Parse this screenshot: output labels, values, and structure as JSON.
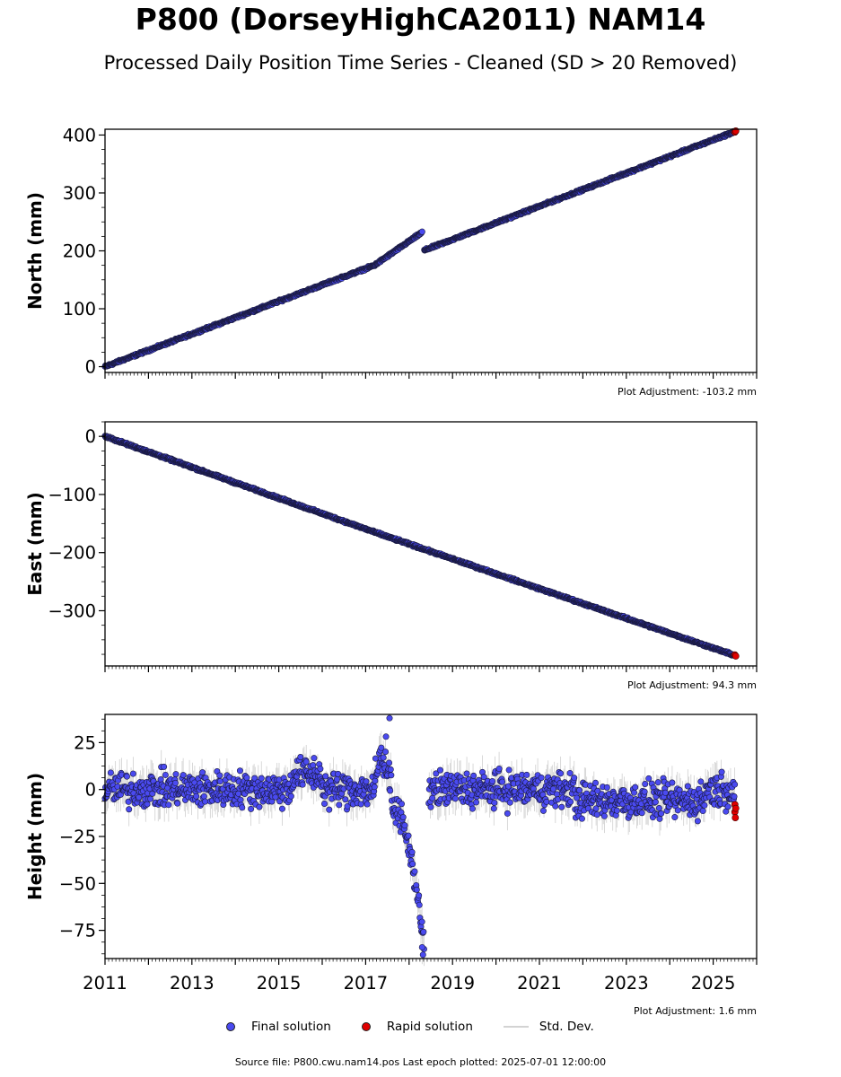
{
  "title": "P800 (DorseyHighCA2011) NAM14",
  "subtitle": "Processed Daily Position Time Series - Cleaned (SD > 20 Removed)",
  "colors": {
    "final": "#4a4af0",
    "final_edge": "#1a1a40",
    "rapid": "#e00000",
    "stddev": "#b0b0b0",
    "axis": "#000000"
  },
  "legend": {
    "final": "Final solution",
    "rapid": "Rapid solution",
    "stddev": "Std. Dev."
  },
  "footer": "Source file: P800.cwu.nam14.pos  Last epoch plotted: 2025-07-01 12:00:00",
  "chart_data": [
    {
      "type": "scatter",
      "ylabel": "North (mm)",
      "adjustment": "Plot Adjustment: -103.2 mm",
      "xlim": [
        2011.0,
        2026.0
      ],
      "ylim": [
        -10,
        410
      ],
      "yticks": [
        0,
        100,
        200,
        300,
        400
      ],
      "ytick_labels": [
        "0",
        "100",
        "200",
        "300",
        "400"
      ],
      "series": [
        {
          "segment": [
            [
              2011.0,
              0
            ],
            [
              2017.2,
              175
            ]
          ]
        },
        {
          "segment": [
            [
              2017.2,
              175
            ],
            [
              2018.3,
              232
            ]
          ]
        },
        {
          "segment": [
            [
              2018.35,
              201
            ],
            [
              2025.5,
              406
            ]
          ]
        }
      ],
      "rapid_points": [
        [
          2025.5,
          405
        ],
        [
          2025.52,
          407
        ]
      ]
    },
    {
      "type": "scatter",
      "ylabel": "East (mm)",
      "adjustment": "Plot Adjustment: 94.3 mm",
      "xlim": [
        2011.0,
        2026.0
      ],
      "ylim": [
        -395,
        25
      ],
      "yticks": [
        0,
        -100,
        -200,
        -300
      ],
      "ytick_labels": [
        "0",
        "−100",
        "−200",
        "−300"
      ],
      "series": [
        {
          "segment": [
            [
              2011.0,
              0
            ],
            [
              2017.4,
              -170
            ]
          ]
        },
        {
          "segment": [
            [
              2017.4,
              -170
            ],
            [
              2025.5,
              -377
            ]
          ]
        }
      ],
      "rapid_points": [
        [
          2025.5,
          -376
        ],
        [
          2025.52,
          -378
        ]
      ]
    },
    {
      "type": "scatter",
      "ylabel": "Height (mm)",
      "adjustment": "Plot Adjustment: 1.6 mm",
      "xlim": [
        2011.0,
        2026.0
      ],
      "ylim": [
        -90,
        40
      ],
      "yticks": [
        25,
        0,
        -25,
        -50,
        -75
      ],
      "ytick_labels": [
        "25",
        "0",
        "−25",
        "−50",
        "−75"
      ],
      "xticks": [
        2011,
        2013,
        2015,
        2017,
        2019,
        2021,
        2023,
        2025
      ],
      "xtick_labels": [
        "2011",
        "2013",
        "2015",
        "2017",
        "2019",
        "2021",
        "2023",
        "2025"
      ],
      "features": {
        "baseline": 0,
        "scatter_amplitude": 8,
        "spike_2017_6": 38,
        "drop_2018_2": -88
      },
      "rapid_points": [
        [
          2025.5,
          -8
        ],
        [
          2025.5,
          -12
        ],
        [
          2025.51,
          -15
        ],
        [
          2025.52,
          -10
        ]
      ]
    }
  ]
}
